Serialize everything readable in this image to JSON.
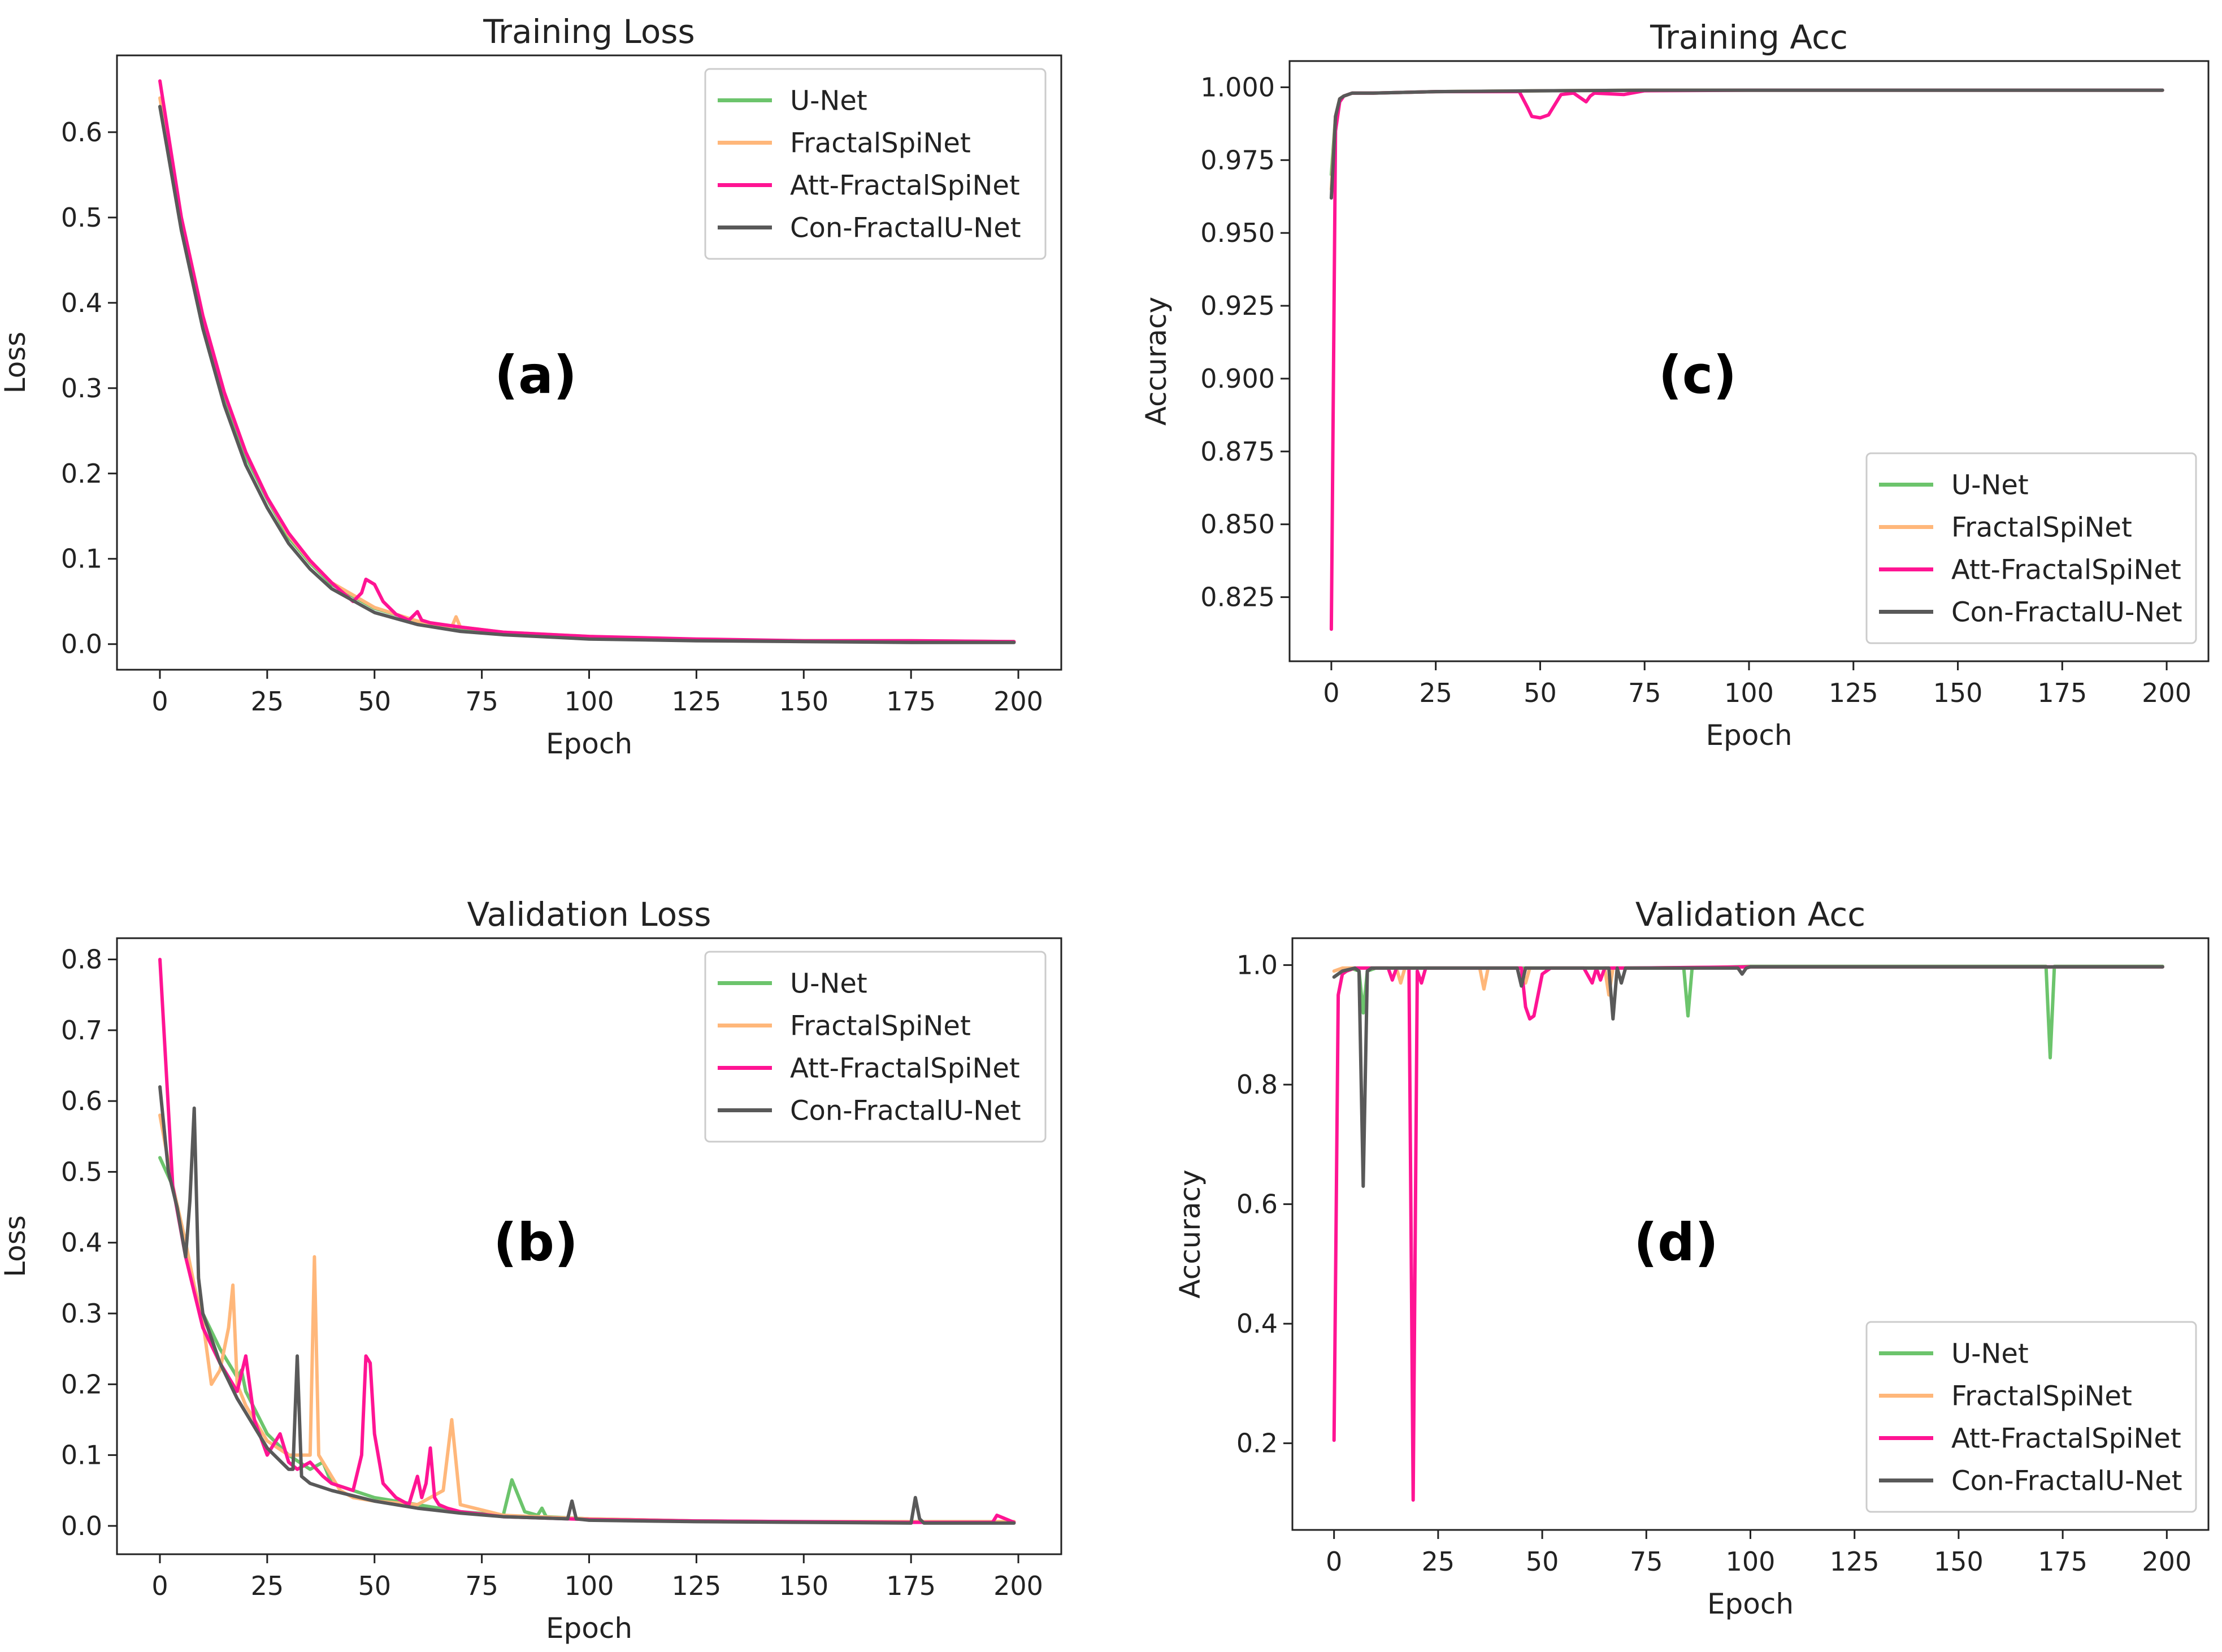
{
  "colors": {
    "U-Net": "#6cc46c",
    "FractalSpiNet": "#ffb77a",
    "Att-FractalSpiNet": "#ff1493",
    "Con-FractalU-Net": "#595959"
  },
  "chart_data": [
    {
      "id": "a",
      "type": "line",
      "title": "Training Loss",
      "xlabel": "Epoch",
      "ylabel": "Loss",
      "panel_tag": "(a)",
      "xlim": [
        -10,
        210
      ],
      "ylim": [
        -0.03,
        0.69
      ],
      "xticks": [
        0,
        25,
        50,
        75,
        100,
        125,
        150,
        175,
        200
      ],
      "xtick_labels": [
        "0",
        "25",
        "50",
        "75",
        "100",
        "125",
        "150",
        "175",
        "200"
      ],
      "yticks": [
        0.0,
        0.1,
        0.2,
        0.3,
        0.4,
        0.5,
        0.6
      ],
      "ytick_labels": [
        "0.0",
        "0.1",
        "0.2",
        "0.3",
        "0.4",
        "0.5",
        "0.6"
      ],
      "legend_position": "upper right",
      "legend": [
        "U-Net",
        "FractalSpiNet",
        "Att-FractalSpiNet",
        "Con-FractalU-Net"
      ],
      "series": [
        {
          "name": "U-Net",
          "x": [
            0,
            5,
            10,
            15,
            20,
            25,
            30,
            35,
            40,
            50,
            60,
            70,
            80,
            100,
            125,
            150,
            175,
            199
          ],
          "y": [
            0.63,
            0.49,
            0.38,
            0.29,
            0.22,
            0.17,
            0.125,
            0.095,
            0.07,
            0.042,
            0.027,
            0.018,
            0.013,
            0.008,
            0.005,
            0.004,
            0.003,
            0.003
          ]
        },
        {
          "name": "FractalSpiNet",
          "x": [
            0,
            5,
            10,
            15,
            20,
            25,
            30,
            35,
            40,
            50,
            60,
            68,
            69,
            70,
            80,
            100,
            125,
            150,
            175,
            199
          ],
          "y": [
            0.64,
            0.5,
            0.385,
            0.295,
            0.225,
            0.172,
            0.128,
            0.097,
            0.072,
            0.043,
            0.027,
            0.02,
            0.032,
            0.02,
            0.014,
            0.009,
            0.005,
            0.004,
            0.004,
            0.003
          ]
        },
        {
          "name": "Att-FractalSpiNet",
          "x": [
            0,
            5,
            10,
            15,
            20,
            25,
            30,
            35,
            40,
            45,
            47,
            48,
            50,
            52,
            55,
            58,
            60,
            61,
            63,
            70,
            80,
            100,
            125,
            150,
            175,
            199
          ],
          "y": [
            0.66,
            0.5,
            0.385,
            0.295,
            0.225,
            0.172,
            0.13,
            0.098,
            0.072,
            0.05,
            0.06,
            0.076,
            0.07,
            0.05,
            0.035,
            0.028,
            0.038,
            0.028,
            0.025,
            0.02,
            0.014,
            0.009,
            0.006,
            0.004,
            0.004,
            0.003
          ]
        },
        {
          "name": "Con-FractalU-Net",
          "x": [
            0,
            5,
            10,
            15,
            20,
            25,
            30,
            35,
            40,
            50,
            60,
            70,
            80,
            100,
            125,
            150,
            175,
            199
          ],
          "y": [
            0.63,
            0.485,
            0.37,
            0.28,
            0.21,
            0.16,
            0.118,
            0.088,
            0.065,
            0.037,
            0.023,
            0.015,
            0.011,
            0.006,
            0.004,
            0.003,
            0.002,
            0.002
          ]
        }
      ]
    },
    {
      "id": "b",
      "type": "line",
      "title": "Validation Loss",
      "xlabel": "Epoch",
      "ylabel": "Loss",
      "panel_tag": "(b)",
      "xlim": [
        -10,
        210
      ],
      "ylim": [
        -0.04,
        0.83
      ],
      "xticks": [
        0,
        25,
        50,
        75,
        100,
        125,
        150,
        175,
        200
      ],
      "xtick_labels": [
        "0",
        "25",
        "50",
        "75",
        "100",
        "125",
        "150",
        "175",
        "200"
      ],
      "yticks": [
        0.0,
        0.1,
        0.2,
        0.3,
        0.4,
        0.5,
        0.6,
        0.7,
        0.8
      ],
      "ytick_labels": [
        "0.0",
        "0.1",
        "0.2",
        "0.3",
        "0.4",
        "0.5",
        "0.6",
        "0.7",
        "0.8"
      ],
      "legend_position": "upper right",
      "legend": [
        "U-Net",
        "FractalSpiNet",
        "Att-FractalSpiNet",
        "Con-FractalU-Net"
      ],
      "series": [
        {
          "name": "U-Net",
          "x": [
            0,
            3,
            6,
            8,
            10,
            14,
            18,
            19,
            20,
            25,
            30,
            35,
            38,
            40,
            50,
            60,
            70,
            80,
            82,
            83,
            85,
            88,
            89,
            90,
            100,
            125,
            150,
            175,
            199
          ],
          "y": [
            0.52,
            0.48,
            0.4,
            0.33,
            0.3,
            0.25,
            0.21,
            0.22,
            0.19,
            0.13,
            0.1,
            0.08,
            0.09,
            0.06,
            0.04,
            0.03,
            0.02,
            0.015,
            0.065,
            0.05,
            0.02,
            0.015,
            0.025,
            0.013,
            0.01,
            0.007,
            0.006,
            0.006,
            0.006
          ]
        },
        {
          "name": "FractalSpiNet",
          "x": [
            0,
            3,
            6,
            8,
            10,
            12,
            14,
            16,
            17,
            18,
            20,
            25,
            30,
            35,
            36,
            37,
            40,
            42,
            45,
            50,
            60,
            66,
            68,
            70,
            80,
            100,
            125,
            150,
            175,
            199
          ],
          "y": [
            0.58,
            0.48,
            0.4,
            0.34,
            0.29,
            0.2,
            0.22,
            0.28,
            0.34,
            0.2,
            0.17,
            0.12,
            0.1,
            0.1,
            0.38,
            0.1,
            0.07,
            0.05,
            0.04,
            0.035,
            0.03,
            0.05,
            0.15,
            0.03,
            0.015,
            0.01,
            0.007,
            0.006,
            0.006,
            0.006
          ]
        },
        {
          "name": "Att-FractalSpiNet",
          "x": [
            0,
            3,
            6,
            8,
            10,
            14,
            18,
            20,
            22,
            25,
            28,
            30,
            32,
            35,
            38,
            40,
            45,
            47,
            48,
            49,
            50,
            52,
            55,
            58,
            60,
            61,
            62,
            63,
            64,
            65,
            67,
            70,
            80,
            100,
            125,
            150,
            175,
            194,
            195,
            199
          ],
          "y": [
            0.8,
            0.48,
            0.38,
            0.33,
            0.28,
            0.23,
            0.19,
            0.24,
            0.15,
            0.1,
            0.13,
            0.09,
            0.08,
            0.09,
            0.07,
            0.06,
            0.05,
            0.1,
            0.24,
            0.23,
            0.13,
            0.06,
            0.04,
            0.03,
            0.07,
            0.04,
            0.06,
            0.11,
            0.04,
            0.03,
            0.025,
            0.02,
            0.013,
            0.009,
            0.007,
            0.006,
            0.005,
            0.005,
            0.015,
            0.005
          ]
        },
        {
          "name": "Con-FractalU-Net",
          "x": [
            0,
            2,
            4,
            6,
            7,
            8,
            9,
            10,
            14,
            18,
            20,
            25,
            30,
            31,
            32,
            33,
            35,
            40,
            50,
            60,
            70,
            80,
            95,
            96,
            97,
            100,
            125,
            150,
            175,
            176,
            177,
            178,
            180,
            199
          ],
          "y": [
            0.62,
            0.5,
            0.45,
            0.38,
            0.46,
            0.59,
            0.35,
            0.3,
            0.23,
            0.18,
            0.16,
            0.11,
            0.08,
            0.08,
            0.24,
            0.07,
            0.06,
            0.05,
            0.035,
            0.025,
            0.018,
            0.013,
            0.01,
            0.035,
            0.01,
            0.008,
            0.006,
            0.005,
            0.004,
            0.04,
            0.01,
            0.004,
            0.004,
            0.004
          ]
        }
      ]
    },
    {
      "id": "c",
      "type": "line",
      "title": "Training Acc",
      "xlabel": "Epoch",
      "ylabel": "Accuracy",
      "panel_tag": "(c)",
      "xlim": [
        -10,
        210
      ],
      "ylim": [
        0.803,
        1.009
      ],
      "xticks": [
        0,
        25,
        50,
        75,
        100,
        125,
        150,
        175,
        200
      ],
      "xtick_labels": [
        "0",
        "25",
        "50",
        "75",
        "100",
        "125",
        "150",
        "175",
        "200"
      ],
      "yticks": [
        0.825,
        0.85,
        0.875,
        0.9,
        0.925,
        0.95,
        0.975,
        1.0
      ],
      "ytick_labels": [
        "0.825",
        "0.850",
        "0.875",
        "0.900",
        "0.925",
        "0.950",
        "0.975",
        "1.000"
      ],
      "legend_position": "lower right",
      "legend": [
        "U-Net",
        "FractalSpiNet",
        "Att-FractalSpiNet",
        "Con-FractalU-Net"
      ],
      "series": [
        {
          "name": "U-Net",
          "x": [
            0,
            1,
            2,
            3,
            5,
            10,
            25,
            50,
            75,
            100,
            125,
            150,
            175,
            199
          ],
          "y": [
            0.97,
            0.99,
            0.996,
            0.997,
            0.998,
            0.998,
            0.9985,
            0.9988,
            0.999,
            0.999,
            0.999,
            0.999,
            0.999,
            0.999
          ]
        },
        {
          "name": "FractalSpiNet",
          "x": [
            0,
            1,
            2,
            3,
            5,
            10,
            25,
            50,
            75,
            100,
            125,
            150,
            175,
            199
          ],
          "y": [
            0.965,
            0.99,
            0.996,
            0.997,
            0.998,
            0.998,
            0.9985,
            0.9988,
            0.999,
            0.999,
            0.999,
            0.999,
            0.999,
            0.999
          ]
        },
        {
          "name": "Att-FractalSpiNet",
          "x": [
            0,
            1,
            2,
            3,
            5,
            10,
            25,
            45,
            47,
            48,
            50,
            52,
            55,
            58,
            60,
            61,
            62,
            63,
            70,
            75,
            100,
            125,
            150,
            175,
            199
          ],
          "y": [
            0.814,
            0.985,
            0.995,
            0.997,
            0.998,
            0.998,
            0.9985,
            0.9985,
            0.993,
            0.99,
            0.9895,
            0.9905,
            0.9975,
            0.998,
            0.996,
            0.995,
            0.997,
            0.998,
            0.9975,
            0.9988,
            0.999,
            0.999,
            0.999,
            0.999,
            0.999
          ]
        },
        {
          "name": "Con-FractalU-Net",
          "x": [
            0,
            1,
            2,
            3,
            5,
            10,
            25,
            50,
            75,
            100,
            125,
            150,
            175,
            199
          ],
          "y": [
            0.962,
            0.99,
            0.996,
            0.997,
            0.998,
            0.998,
            0.9985,
            0.9988,
            0.999,
            0.999,
            0.999,
            0.999,
            0.999,
            0.999
          ]
        }
      ]
    },
    {
      "id": "d",
      "type": "line",
      "title": "Validation Acc",
      "xlabel": "Epoch",
      "ylabel": "Accuracy",
      "panel_tag": "(d)",
      "xlim": [
        -10,
        210
      ],
      "ylim": [
        0.055,
        1.045
      ],
      "xticks": [
        0,
        25,
        50,
        75,
        100,
        125,
        150,
        175,
        200
      ],
      "xtick_labels": [
        "0",
        "25",
        "50",
        "75",
        "100",
        "125",
        "150",
        "175",
        "200"
      ],
      "yticks": [
        0.2,
        0.4,
        0.6,
        0.8,
        1.0
      ],
      "ytick_labels": [
        "0.2",
        "0.4",
        "0.6",
        "0.8",
        "1.0"
      ],
      "legend_position": "lower right",
      "legend": [
        "U-Net",
        "FractalSpiNet",
        "Att-FractalSpiNet",
        "Con-FractalU-Net"
      ],
      "series": [
        {
          "name": "U-Net",
          "x": [
            0,
            2,
            4,
            6,
            7,
            8,
            10,
            20,
            40,
            60,
            84,
            85,
            86,
            100,
            125,
            150,
            171,
            172,
            173,
            175,
            199
          ],
          "y": [
            0.98,
            0.99,
            0.995,
            0.99,
            0.92,
            0.99,
            0.995,
            0.995,
            0.995,
            0.995,
            0.995,
            0.915,
            0.995,
            0.998,
            0.998,
            0.998,
            0.998,
            0.845,
            0.998,
            0.998,
            0.998
          ]
        },
        {
          "name": "FractalSpiNet",
          "x": [
            0,
            2,
            5,
            10,
            15,
            16,
            17,
            20,
            30,
            35,
            36,
            37,
            40,
            45,
            46,
            47,
            50,
            60,
            65,
            66,
            67,
            70,
            100,
            125,
            150,
            175,
            199
          ],
          "y": [
            0.99,
            0.995,
            0.995,
            0.995,
            0.995,
            0.97,
            0.995,
            0.995,
            0.995,
            0.995,
            0.96,
            0.995,
            0.995,
            0.995,
            0.97,
            0.995,
            0.995,
            0.995,
            0.995,
            0.95,
            0.995,
            0.995,
            0.997,
            0.997,
            0.997,
            0.997,
            0.997
          ]
        },
        {
          "name": "Att-FractalSpiNet",
          "x": [
            0,
            1,
            2,
            3,
            5,
            10,
            13,
            14,
            15,
            18,
            19,
            20,
            21,
            22,
            25,
            30,
            40,
            45,
            46,
            47,
            48,
            49,
            50,
            52,
            55,
            58,
            60,
            62,
            63,
            64,
            65,
            70,
            100,
            125,
            150,
            175,
            199
          ],
          "y": [
            0.205,
            0.95,
            0.985,
            0.99,
            0.995,
            0.995,
            0.995,
            0.975,
            0.995,
            0.995,
            0.105,
            0.99,
            0.97,
            0.995,
            0.995,
            0.995,
            0.995,
            0.995,
            0.93,
            0.91,
            0.915,
            0.95,
            0.985,
            0.995,
            0.995,
            0.995,
            0.995,
            0.97,
            0.995,
            0.975,
            0.995,
            0.995,
            0.997,
            0.997,
            0.997,
            0.997,
            0.997
          ]
        },
        {
          "name": "Con-FractalU-Net",
          "x": [
            0,
            2,
            5,
            6,
            7,
            8,
            9,
            10,
            20,
            40,
            44,
            45,
            46,
            60,
            66,
            67,
            68,
            69,
            70,
            97,
            98,
            99,
            100,
            125,
            150,
            175,
            199
          ],
          "y": [
            0.98,
            0.99,
            0.995,
            0.99,
            0.63,
            0.99,
            0.995,
            0.995,
            0.995,
            0.995,
            0.995,
            0.965,
            0.995,
            0.995,
            0.995,
            0.91,
            0.995,
            0.97,
            0.995,
            0.995,
            0.985,
            0.995,
            0.997,
            0.997,
            0.997,
            0.997,
            0.997
          ]
        }
      ]
    }
  ]
}
